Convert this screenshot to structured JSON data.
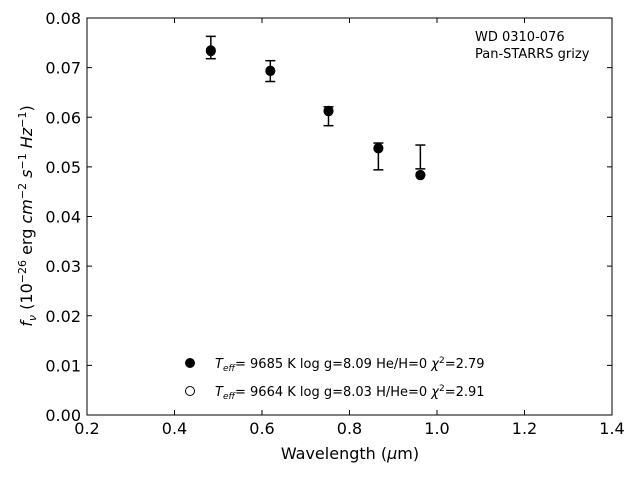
{
  "chart_data": {
    "type": "scatter",
    "xlim": [
      0.2,
      1.4
    ],
    "ylim": [
      0.0,
      0.08
    ],
    "xticks": [
      0.2,
      0.4,
      0.6,
      0.8,
      1.0,
      1.2,
      1.4
    ],
    "xtick_labels": [
      "0.2",
      "0.4",
      "0.6",
      "0.8",
      "1.0",
      "1.2",
      "1.4"
    ],
    "yticks": [
      0.0,
      0.01,
      0.02,
      0.03,
      0.04,
      0.05,
      0.06,
      0.07,
      0.08
    ],
    "ytick_labels": [
      "0.00",
      "0.01",
      "0.02",
      "0.03",
      "0.04",
      "0.05",
      "0.06",
      "0.07",
      "0.08"
    ],
    "xlabel": {
      "pre": "Wavelength (",
      "sym": "μ",
      "post": "m)"
    },
    "ylabel": {
      "f": "f",
      "nu": "ν",
      "open": " (10",
      "exp26": "−26",
      "erg": " erg ",
      "cm": "cm",
      "expm2": "−2",
      "s": " s",
      "expm1": "−1",
      "hz": " Hz",
      "expm1b": "−1",
      "close": ")"
    },
    "annotation": [
      "WD 0310-076",
      "Pan-STARRS grizy"
    ],
    "observed": {
      "x": [
        0.483,
        0.619,
        0.752,
        0.866,
        0.962
      ],
      "y_low": [
        0.0718,
        0.0672,
        0.0583,
        0.0494,
        0.0496
      ],
      "y_high": [
        0.0763,
        0.0714,
        0.0621,
        0.0548,
        0.0544
      ]
    },
    "series": [
      {
        "marker": "filled",
        "x": [
          0.483,
          0.619,
          0.752,
          0.866,
          0.962
        ],
        "y": [
          0.0735,
          0.0694,
          0.0613,
          0.0538,
          0.0484
        ]
      },
      {
        "marker": "open",
        "x": [
          0.483,
          0.619,
          0.752,
          0.866,
          0.962
        ],
        "y": [
          0.0733,
          0.0693,
          0.0612,
          0.0537,
          0.0483
        ]
      }
    ],
    "legend": [
      {
        "marker": "filled",
        "T": "T",
        "eff": "eff",
        "pre": "=  9685 K  log g=8.09  He/H=0  ",
        "chi": "χ",
        "sq": "2",
        "post": "=2.79"
      },
      {
        "marker": "open",
        "T": "T",
        "eff": "eff",
        "pre": "=  9664 K  log g=8.03  H/He=0  ",
        "chi": "χ",
        "sq": "2",
        "post": "=2.91"
      }
    ]
  }
}
